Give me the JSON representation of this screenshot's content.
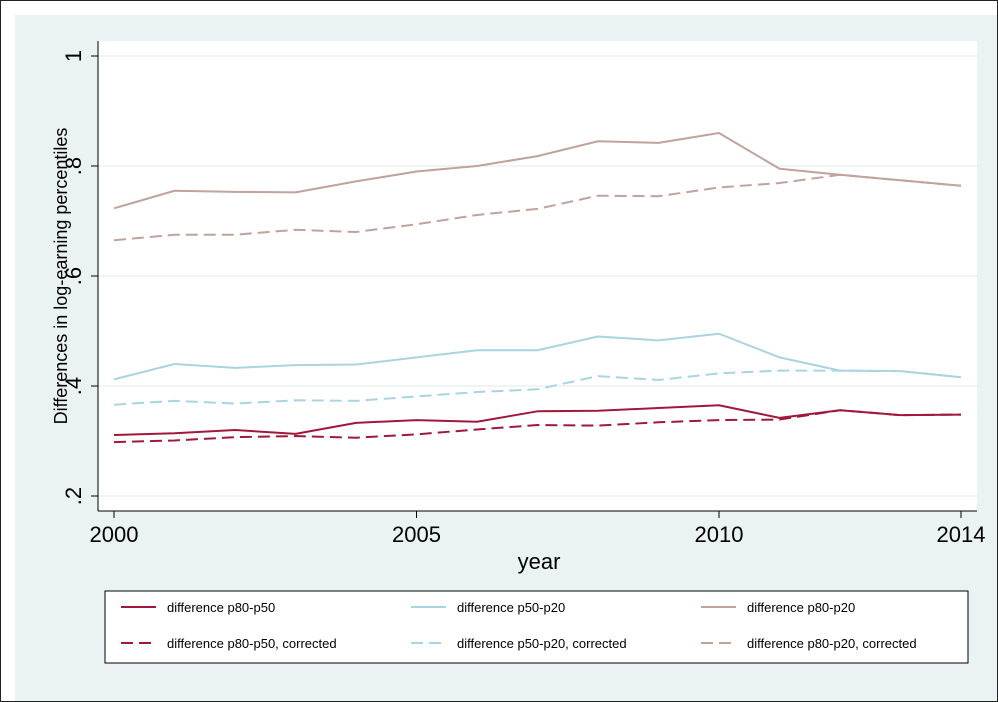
{
  "chart_data": {
    "type": "line",
    "title": "",
    "xlabel": "year",
    "ylabel": "Differences in log-earning percentiles",
    "x": [
      2000,
      2001,
      2002,
      2003,
      2004,
      2005,
      2006,
      2007,
      2008,
      2009,
      2010,
      2011,
      2012,
      2013,
      2014
    ],
    "xlim": [
      2000,
      2014
    ],
    "ylim": [
      0.2,
      1
    ],
    "xticks": [
      2000,
      2005,
      2010,
      2014
    ],
    "xtick_labels": [
      "2000",
      "2005",
      "2010",
      "2014"
    ],
    "yticks": [
      0.2,
      0.4,
      0.6,
      0.8,
      1
    ],
    "ytick_labels": [
      ".2",
      ".4",
      ".6",
      ".8",
      "1"
    ],
    "grid": true,
    "legend_position": "bottom",
    "series": [
      {
        "name": "difference  p80-p50",
        "color": "#a0193c",
        "dash": "solid",
        "values": [
          0.311,
          0.314,
          0.32,
          0.313,
          0.333,
          0.338,
          0.335,
          0.354,
          0.355,
          0.36,
          0.365,
          0.342,
          0.356,
          0.347,
          0.348
        ]
      },
      {
        "name": "difference  p50-p20",
        "color": "#a9d4e0",
        "dash": "solid",
        "values": [
          0.412,
          0.44,
          0.433,
          0.438,
          0.439,
          0.452,
          0.465,
          0.465,
          0.49,
          0.483,
          0.495,
          0.452,
          0.428,
          0.427,
          0.416
        ]
      },
      {
        "name": "difference  p80-p20",
        "color": "#bfa39c",
        "dash": "solid",
        "values": [
          0.723,
          0.755,
          0.753,
          0.752,
          0.772,
          0.79,
          0.8,
          0.818,
          0.845,
          0.842,
          0.86,
          0.795,
          0.784,
          0.774,
          0.764
        ]
      },
      {
        "name": "difference  p80-p50, corrected",
        "color": "#a0193c",
        "dash": "dashed",
        "values": [
          0.298,
          0.301,
          0.307,
          0.309,
          0.306,
          0.312,
          0.321,
          0.329,
          0.328,
          0.334,
          0.338,
          0.339,
          0.356,
          0.347,
          0.348
        ]
      },
      {
        "name": "difference  p50-p20, corrected",
        "color": "#a9d4e0",
        "dash": "dashed",
        "values": [
          0.366,
          0.373,
          0.368,
          0.374,
          0.373,
          0.381,
          0.389,
          0.394,
          0.418,
          0.411,
          0.423,
          0.428,
          0.428,
          0.427,
          0.416
        ]
      },
      {
        "name": "difference  p80-p20, corrected",
        "color": "#bfa39c",
        "dash": "dashed",
        "values": [
          0.665,
          0.675,
          0.675,
          0.684,
          0.68,
          0.694,
          0.711,
          0.722,
          0.746,
          0.745,
          0.761,
          0.769,
          0.784,
          0.774,
          0.764
        ]
      }
    ]
  }
}
